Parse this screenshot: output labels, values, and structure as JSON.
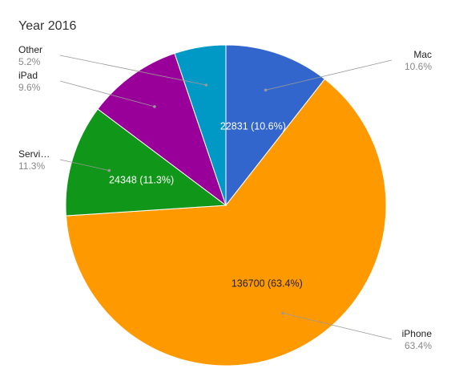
{
  "chart_data": {
    "type": "pie",
    "title": "Year 2016",
    "slices": [
      {
        "name": "Mac",
        "value": 22831,
        "percent": "10.6%",
        "color": "#3366cc",
        "data_label": "22831 (10.6%)"
      },
      {
        "name": "iPhone",
        "value": 136700,
        "percent": "63.4%",
        "color": "#ff9900",
        "data_label": "136700 (63.4%)"
      },
      {
        "name": "Servi…",
        "value": 24348,
        "percent": "11.3%",
        "color": "#109618",
        "data_label": "24348 (11.3%)"
      },
      {
        "name": "iPad",
        "value": 20628,
        "percent": "9.6%",
        "color": "#990099",
        "data_label": ""
      },
      {
        "name": "Other",
        "value": 11190,
        "percent": "5.2%",
        "color": "#0099c6",
        "data_label": ""
      }
    ]
  }
}
